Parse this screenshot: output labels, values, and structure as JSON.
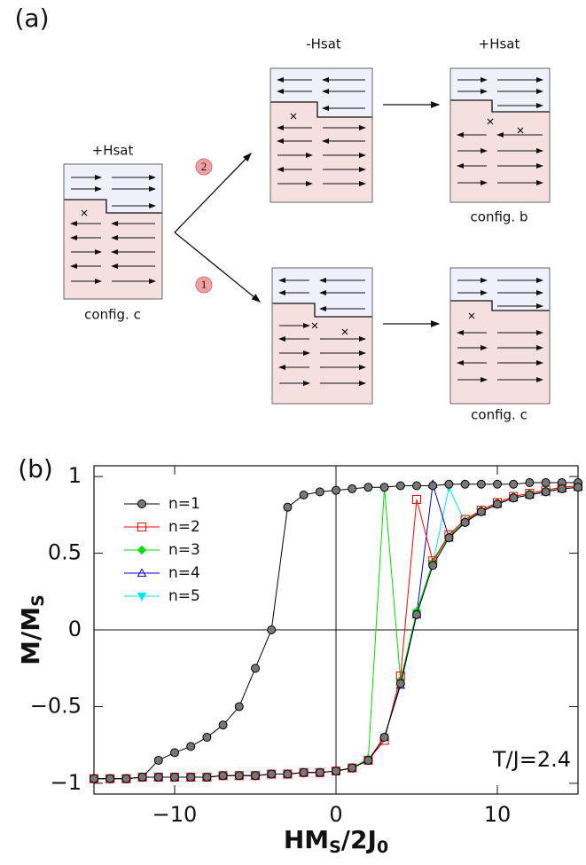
{
  "panel_a": {
    "label": "(a)",
    "start": {
      "field": "+Hsat",
      "caption": "config. c"
    },
    "path_2": {
      "step": "2",
      "field": "-Hsat",
      "end_field": "+Hsat",
      "end_caption": "config. b"
    },
    "path_1": {
      "step": "1",
      "end_caption": "config. c"
    }
  },
  "panel_b_label": "(b)",
  "chart_data": {
    "type": "line",
    "xlabel_parts": [
      "HM",
      "S",
      "/2J",
      "0"
    ],
    "ylabel_parts": [
      "M/M",
      "S"
    ],
    "annotation": "T/J=2.4",
    "xlim": [
      -15,
      15
    ],
    "ylim": [
      -1.07,
      1.07
    ],
    "xticks": [
      {
        "value": -10,
        "label": "−10"
      },
      0,
      10
    ],
    "yticks": [
      {
        "value": -1,
        "label": "−1"
      },
      {
        "value": -0.5,
        "label": "−0.5"
      },
      0,
      0.5,
      1
    ],
    "zero_lines": true,
    "legend": "upper left",
    "series": [
      {
        "name": "n=1",
        "color": "#000000",
        "marker": "circle",
        "marker_fill": "#777777",
        "x": [
          15,
          14,
          13,
          12,
          11,
          10,
          9,
          8,
          7,
          6,
          5,
          4,
          3,
          2,
          1,
          0,
          -1,
          -2,
          -3,
          -4,
          -5,
          -6,
          -7,
          -8,
          -9,
          -10,
          -11,
          -12,
          -13,
          -14,
          -15,
          -14,
          -13,
          -12,
          -11,
          -10,
          -9,
          -8,
          -7,
          -6,
          -5,
          -4,
          -3,
          -2,
          -1,
          0,
          1,
          2,
          3,
          4,
          5,
          6,
          7,
          8,
          9,
          10,
          11,
          12,
          13,
          14,
          15
        ],
        "values": [
          0.96,
          0.96,
          0.96,
          0.96,
          0.95,
          0.95,
          0.95,
          0.95,
          0.95,
          0.94,
          0.94,
          0.94,
          0.93,
          0.93,
          0.92,
          0.91,
          0.9,
          0.88,
          0.8,
          0.0,
          -0.25,
          -0.5,
          -0.62,
          -0.7,
          -0.76,
          -0.8,
          -0.85,
          -0.96,
          -0.97,
          -0.97,
          -0.97,
          -0.97,
          -0.97,
          -0.96,
          -0.96,
          -0.96,
          -0.96,
          -0.96,
          -0.95,
          -0.95,
          -0.95,
          -0.94,
          -0.94,
          -0.93,
          -0.93,
          -0.92,
          -0.9,
          -0.85,
          -0.7,
          -0.35,
          0.1,
          0.42,
          0.6,
          0.7,
          0.77,
          0.82,
          0.86,
          0.88,
          0.9,
          0.92,
          0.93
        ]
      },
      {
        "name": "n=2",
        "color": "#ff0000",
        "marker": "square",
        "marker_fill": "none",
        "x": [
          -15,
          -14,
          -13,
          -12,
          -11,
          -10,
          -9,
          -8,
          -7,
          -6,
          -5,
          -4,
          -3,
          -2,
          -1,
          0,
          1,
          2,
          3,
          4,
          5,
          6,
          7,
          8,
          9,
          10,
          11,
          12,
          13,
          14,
          15
        ],
        "values": [
          -0.97,
          -0.97,
          -0.97,
          -0.96,
          -0.96,
          -0.96,
          -0.96,
          -0.96,
          -0.95,
          -0.95,
          -0.95,
          -0.94,
          -0.94,
          -0.93,
          -0.93,
          -0.92,
          -0.9,
          -0.85,
          -0.72,
          -0.3,
          0.85,
          0.45,
          0.62,
          0.72,
          0.78,
          0.83,
          0.87,
          0.89,
          0.91,
          0.93,
          0.94
        ]
      },
      {
        "name": "n=3",
        "color": "#00dd00",
        "marker": "diamond",
        "marker_fill": "#00dd00",
        "x": [
          -15,
          -14,
          -13,
          -12,
          -11,
          -10,
          -9,
          -8,
          -7,
          -6,
          -5,
          -4,
          -3,
          -2,
          -1,
          0,
          1,
          2,
          3,
          4,
          5,
          6,
          7,
          8,
          9,
          10,
          11,
          12,
          13,
          14,
          15
        ],
        "values": [
          -0.97,
          -0.97,
          -0.97,
          -0.96,
          -0.96,
          -0.96,
          -0.96,
          -0.96,
          -0.95,
          -0.95,
          -0.95,
          -0.94,
          -0.94,
          -0.93,
          -0.93,
          -0.92,
          -0.9,
          -0.84,
          0.93,
          -0.33,
          0.12,
          0.44,
          0.61,
          0.71,
          0.78,
          0.83,
          0.87,
          0.89,
          0.91,
          0.93,
          0.94
        ]
      },
      {
        "name": "n=4",
        "color": "#0000cc",
        "marker": "triangle-up",
        "marker_fill": "none",
        "x": [
          -15,
          -14,
          -13,
          -12,
          -11,
          -10,
          -9,
          -8,
          -7,
          -6,
          -5,
          -4,
          -3,
          -2,
          -1,
          0,
          1,
          2,
          3,
          4,
          5,
          6,
          7,
          8,
          9,
          10,
          11,
          12,
          13,
          14,
          15
        ],
        "values": [
          -0.97,
          -0.97,
          -0.97,
          -0.96,
          -0.96,
          -0.96,
          -0.96,
          -0.96,
          -0.95,
          -0.95,
          -0.95,
          -0.94,
          -0.94,
          -0.93,
          -0.93,
          -0.92,
          -0.9,
          -0.85,
          -0.7,
          -0.36,
          0.1,
          0.95,
          0.6,
          0.71,
          0.77,
          0.82,
          0.86,
          0.88,
          0.9,
          0.92,
          0.93
        ]
      },
      {
        "name": "n=5",
        "color": "#00e5ee",
        "marker": "triangle-down",
        "marker_fill": "#00e5ee",
        "x": [
          -15,
          -14,
          -13,
          -12,
          -11,
          -10,
          -9,
          -8,
          -7,
          -6,
          -5,
          -4,
          -3,
          -2,
          -1,
          0,
          1,
          2,
          3,
          4,
          5,
          6,
          7,
          8,
          9,
          10,
          11,
          12,
          13,
          14,
          15
        ],
        "values": [
          -0.97,
          -0.97,
          -0.97,
          -0.96,
          -0.96,
          -0.96,
          -0.96,
          -0.96,
          -0.95,
          -0.95,
          -0.95,
          -0.94,
          -0.94,
          -0.93,
          -0.93,
          -0.92,
          -0.9,
          -0.85,
          -0.7,
          -0.34,
          0.11,
          0.43,
          0.93,
          0.7,
          0.77,
          0.82,
          0.86,
          0.88,
          0.9,
          0.92,
          0.93
        ]
      }
    ]
  }
}
